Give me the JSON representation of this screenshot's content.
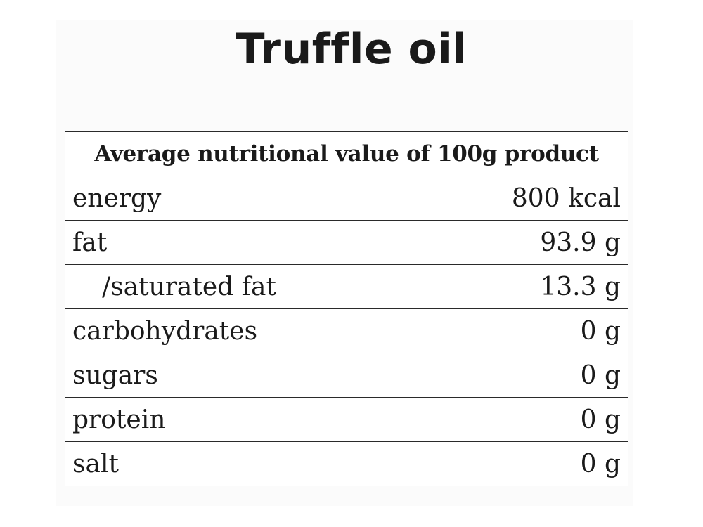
{
  "title": "Truffle oil",
  "table": {
    "header": "Average nutritional value of 100g product",
    "rows": [
      {
        "label": "energy",
        "value": "800 kcal"
      },
      {
        "label": "fat",
        "value": "93.9 g"
      },
      {
        "label": "/saturated fat",
        "value": "13.3 g"
      },
      {
        "label": "carbohydrates",
        "value": "0 g"
      },
      {
        "label": "sugars",
        "value": "0 g"
      },
      {
        "label": "protein",
        "value": "0 g"
      },
      {
        "label": "salt",
        "value": "0 g"
      }
    ]
  }
}
